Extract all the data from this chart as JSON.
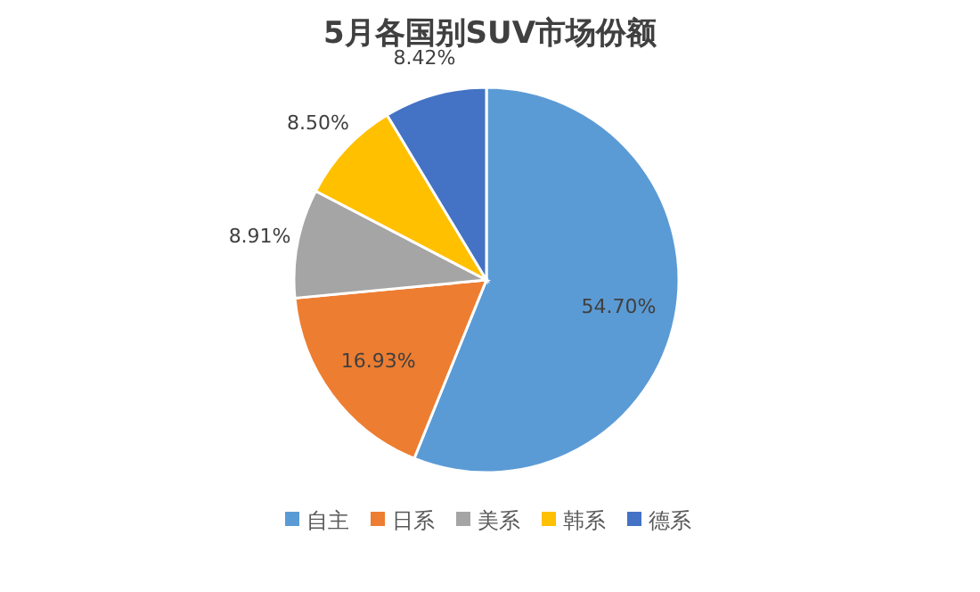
{
  "chart_data": {
    "type": "pie",
    "title": "5月各国别SUV市场份额",
    "categories": [
      "自主",
      "日系",
      "美系",
      "韩系",
      "德系"
    ],
    "values": [
      54.7,
      16.93,
      8.91,
      8.5,
      8.42
    ],
    "colors": [
      "#5b9bd5",
      "#ed7d31",
      "#a5a5a5",
      "#ffc000",
      "#4472c4"
    ],
    "value_labels": [
      "54.70%",
      "16.93%",
      "8.91%",
      "8.50%",
      "8.42%"
    ],
    "legend": "bottom"
  }
}
